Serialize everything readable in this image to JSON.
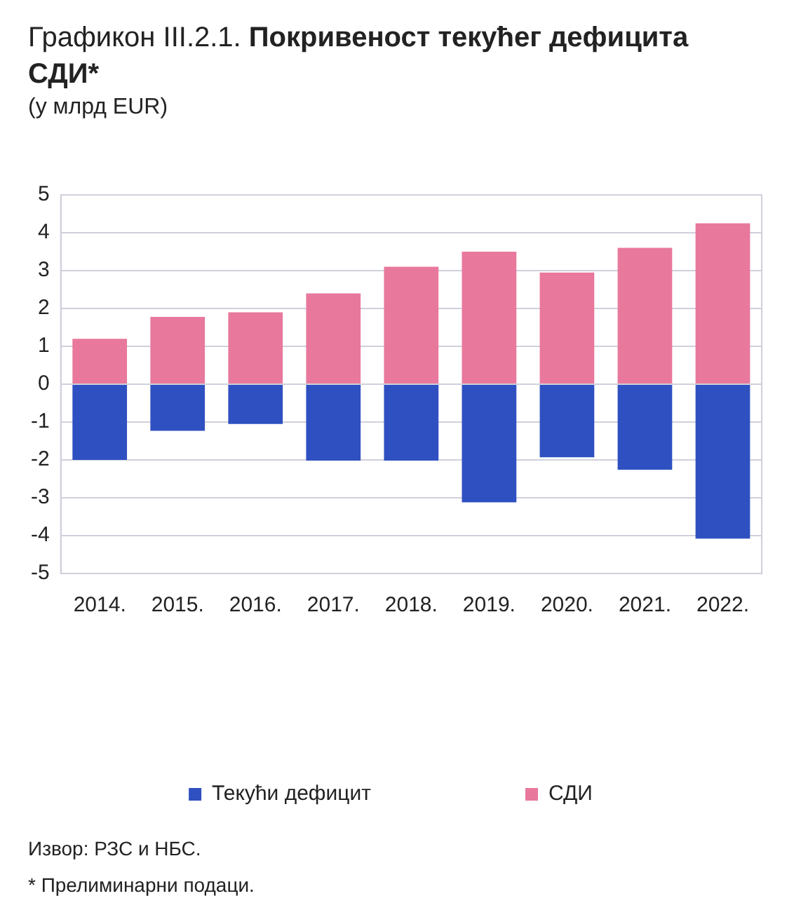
{
  "chart_data": {
    "type": "bar",
    "title": "Графикон III.2.1. Покривеност текућег дефицита СДИ*",
    "subtitle": "(у млрд EUR)",
    "categories": [
      "2014.",
      "2015.",
      "2016.",
      "2017.",
      "2018.",
      "2019.",
      "2020.",
      "2021.",
      "2022."
    ],
    "series": [
      {
        "name": "Текући дефицит",
        "color": "#2f50c0",
        "values": [
          -2.0,
          -1.23,
          -1.05,
          -2.02,
          -2.02,
          -3.12,
          -1.93,
          -2.26,
          -4.08
        ]
      },
      {
        "name": "СДИ",
        "color": "#e8789c",
        "values": [
          1.2,
          1.78,
          1.9,
          2.4,
          3.1,
          3.5,
          2.95,
          3.6,
          4.25
        ]
      }
    ],
    "stacked": true,
    "ylim": [
      -5,
      5
    ],
    "yticks": [
      -5,
      -4,
      -3,
      -2,
      -1,
      0,
      1,
      2,
      3,
      4,
      5
    ],
    "grid": "y",
    "legend": "bottom",
    "annotations": [
      "Извор: РЗС и НБС.",
      "* Прелиминарни подаци."
    ]
  }
}
